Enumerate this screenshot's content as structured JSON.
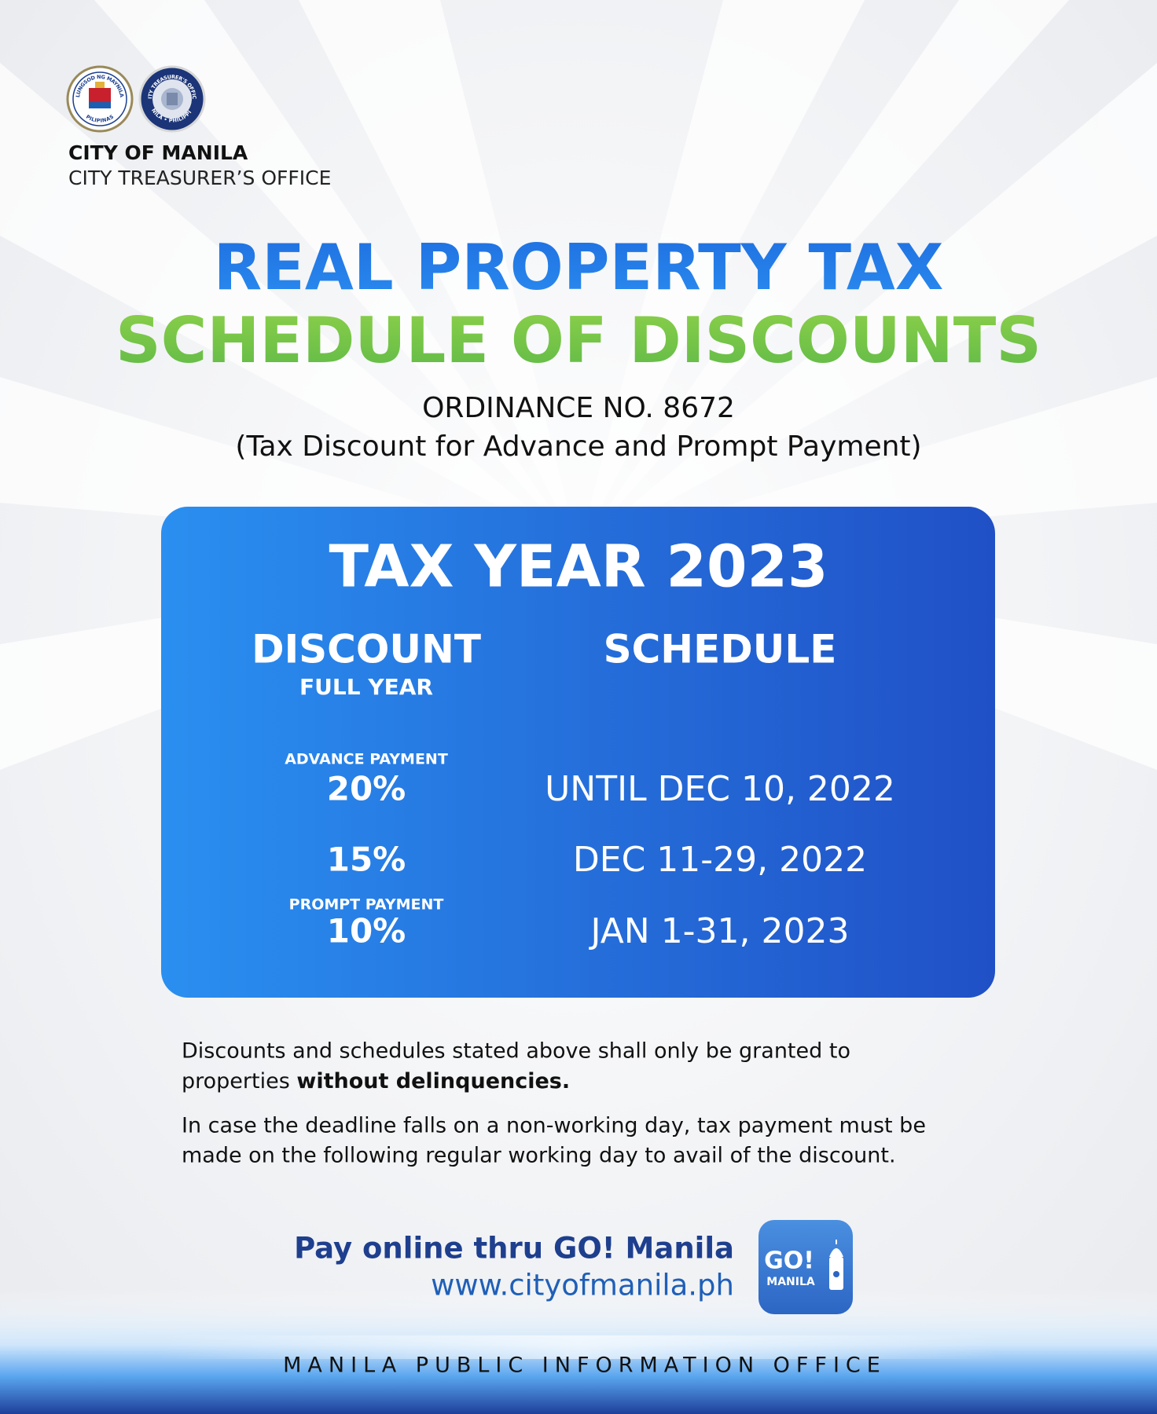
{
  "header": {
    "seals": [
      {
        "top": "LUNGSOD NG MAYNILA",
        "bottom": "PILIPINAS"
      },
      {
        "top": "CITY TREASURER'S OFFICE",
        "bottom": "MANILA • PHILIPPINES"
      }
    ],
    "org": "CITY OF MANILA",
    "office": "CITY TREASURER’S OFFICE"
  },
  "title": {
    "line1": "REAL PROPERTY TAX",
    "line2": "SCHEDULE OF DISCOUNTS",
    "ordinance": "ORDINANCE NO. 8672",
    "subtitle": "(Tax Discount for Advance and Prompt Payment)"
  },
  "card": {
    "heading": "TAX YEAR 2023",
    "discount_header": "DISCOUNT",
    "discount_sub": "FULL YEAR",
    "schedule_header": "SCHEDULE",
    "rows": [
      {
        "group": "ADVANCE PAYMENT",
        "discount": "20%",
        "schedule": "UNTIL DEC 10, 2022"
      },
      {
        "discount": "15%",
        "schedule": "DEC 11-29, 2022"
      },
      {
        "group": "PROMPT PAYMENT",
        "discount": "10%",
        "schedule": "JAN 1-31, 2023"
      }
    ]
  },
  "notes": {
    "note1_line1": "Discounts and schedules stated above shall only be granted to",
    "note1_line2": "properties ",
    "note1_bold": "without delinquencies.",
    "note2_line1": "In case the deadline falls on a non-working day, tax payment must be",
    "note2_line2": "made on the following regular working day to avail of the discount."
  },
  "footer": {
    "pay": "Pay online thru GO! Manila",
    "url": "www.cityofmanila.ph",
    "app_go": "GO!",
    "app_manila": "MANILA",
    "office": "MANILA PUBLIC INFORMATION OFFICE"
  }
}
